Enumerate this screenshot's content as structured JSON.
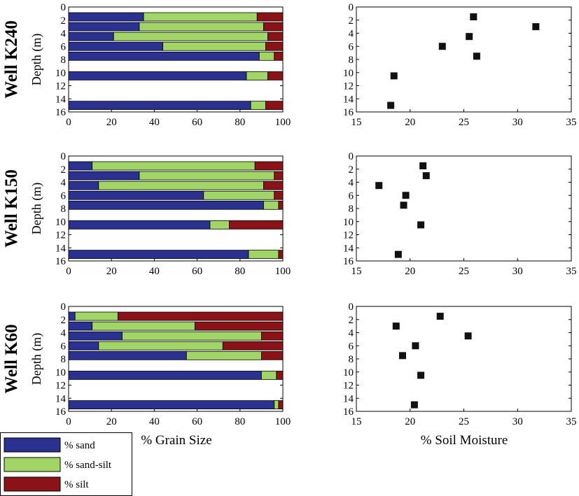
{
  "colors": {
    "sand": "#2b3191",
    "sand_silt": "#a1d667",
    "silt": "#8b1318",
    "marker": "#111111",
    "axis": "#000000"
  },
  "xlabels": {
    "grain": "% Grain Size",
    "moisture": "% Soil Moisture"
  },
  "ylabel": "Depth (m)",
  "legend": {
    "items": [
      {
        "key": "sand",
        "label": "% sand",
        "color_key": "sand"
      },
      {
        "key": "sand_silt",
        "label": "% sand-silt",
        "color_key": "sand_silt"
      },
      {
        "key": "silt",
        "label": "% silt",
        "color_key": "silt"
      }
    ]
  },
  "chart_data": [
    {
      "well": "Well K240",
      "grain": {
        "type": "bar",
        "orientation": "horizontal-stacked",
        "xlim": [
          0,
          100
        ],
        "ylim": [
          0,
          16
        ],
        "xticks": [
          "0",
          "20",
          "40",
          "60",
          "80",
          "100"
        ],
        "yticks": [
          "0",
          "2",
          "4",
          "6",
          "8",
          "10",
          "12",
          "14",
          "16"
        ],
        "rows": [
          {
            "depth": 1.5,
            "sand": 35,
            "sand_silt": 53,
            "silt": 12
          },
          {
            "depth": 3.0,
            "sand": 33,
            "sand_silt": 58,
            "silt": 9
          },
          {
            "depth": 4.5,
            "sand": 21,
            "sand_silt": 72,
            "silt": 7
          },
          {
            "depth": 6.0,
            "sand": 44,
            "sand_silt": 48,
            "silt": 8
          },
          {
            "depth": 7.5,
            "sand": 89,
            "sand_silt": 7,
            "silt": 4
          },
          {
            "depth": 10.5,
            "sand": 83,
            "sand_silt": 10,
            "silt": 7
          },
          {
            "depth": 15.0,
            "sand": 85,
            "sand_silt": 7,
            "silt": 8
          }
        ]
      },
      "moisture": {
        "type": "scatter",
        "xlim": [
          15,
          35
        ],
        "ylim": [
          0,
          16
        ],
        "xticks": [
          "15",
          "20",
          "25",
          "30",
          "35"
        ],
        "yticks": [
          "0",
          "2",
          "4",
          "6",
          "8",
          "10",
          "12",
          "14",
          "16"
        ],
        "points": [
          {
            "x": 25.9,
            "depth": 1.5
          },
          {
            "x": 31.7,
            "depth": 3.0
          },
          {
            "x": 25.5,
            "depth": 4.5
          },
          {
            "x": 23.0,
            "depth": 6.0
          },
          {
            "x": 26.2,
            "depth": 7.5
          },
          {
            "x": 18.5,
            "depth": 10.5
          },
          {
            "x": 18.2,
            "depth": 15.0
          }
        ]
      }
    },
    {
      "well": "Well K150",
      "grain": {
        "type": "bar",
        "orientation": "horizontal-stacked",
        "xlim": [
          0,
          100
        ],
        "ylim": [
          0,
          16
        ],
        "xticks": [
          "0",
          "20",
          "40",
          "60",
          "80",
          "100"
        ],
        "yticks": [
          "0",
          "2",
          "4",
          "6",
          "8",
          "10",
          "12",
          "14",
          "16"
        ],
        "rows": [
          {
            "depth": 1.5,
            "sand": 11,
            "sand_silt": 76,
            "silt": 13
          },
          {
            "depth": 3.0,
            "sand": 33,
            "sand_silt": 63,
            "silt": 4
          },
          {
            "depth": 4.5,
            "sand": 14,
            "sand_silt": 77,
            "silt": 9
          },
          {
            "depth": 6.0,
            "sand": 63,
            "sand_silt": 33,
            "silt": 4
          },
          {
            "depth": 7.5,
            "sand": 91,
            "sand_silt": 7,
            "silt": 2
          },
          {
            "depth": 10.5,
            "sand": 66,
            "sand_silt": 9,
            "silt": 25
          },
          {
            "depth": 15.0,
            "sand": 84,
            "sand_silt": 14,
            "silt": 2
          }
        ]
      },
      "moisture": {
        "type": "scatter",
        "xlim": [
          15,
          35
        ],
        "ylim": [
          0,
          16
        ],
        "xticks": [
          "15",
          "20",
          "25",
          "30",
          "35"
        ],
        "yticks": [
          "0",
          "2",
          "4",
          "6",
          "8",
          "10",
          "12",
          "14",
          "16"
        ],
        "points": [
          {
            "x": 21.2,
            "depth": 1.5
          },
          {
            "x": 21.5,
            "depth": 3.0
          },
          {
            "x": 17.1,
            "depth": 4.5
          },
          {
            "x": 19.6,
            "depth": 6.0
          },
          {
            "x": 19.4,
            "depth": 7.5
          },
          {
            "x": 21.0,
            "depth": 10.5
          },
          {
            "x": 18.9,
            "depth": 15.0
          }
        ]
      }
    },
    {
      "well": "Well K60",
      "grain": {
        "type": "bar",
        "orientation": "horizontal-stacked",
        "xlim": [
          0,
          100
        ],
        "ylim": [
          0,
          16
        ],
        "xticks": [
          "0",
          "20",
          "40",
          "60",
          "80",
          "100"
        ],
        "yticks": [
          "0",
          "2",
          "4",
          "6",
          "8",
          "10",
          "12",
          "14",
          "16"
        ],
        "rows": [
          {
            "depth": 1.5,
            "sand": 3,
            "sand_silt": 20,
            "silt": 77
          },
          {
            "depth": 3.0,
            "sand": 11,
            "sand_silt": 48,
            "silt": 41
          },
          {
            "depth": 4.5,
            "sand": 25,
            "sand_silt": 65,
            "silt": 10
          },
          {
            "depth": 6.0,
            "sand": 14,
            "sand_silt": 58,
            "silt": 28
          },
          {
            "depth": 7.5,
            "sand": 55,
            "sand_silt": 35,
            "silt": 10
          },
          {
            "depth": 10.5,
            "sand": 90,
            "sand_silt": 7,
            "silt": 3
          },
          {
            "depth": 15.0,
            "sand": 96,
            "sand_silt": 2,
            "silt": 2
          }
        ]
      },
      "moisture": {
        "type": "scatter",
        "xlim": [
          15,
          35
        ],
        "ylim": [
          0,
          16
        ],
        "xticks": [
          "15",
          "20",
          "25",
          "30",
          "35"
        ],
        "yticks": [
          "0",
          "2",
          "4",
          "6",
          "8",
          "10",
          "12",
          "14",
          "16"
        ],
        "points": [
          {
            "x": 22.8,
            "depth": 1.5
          },
          {
            "x": 18.7,
            "depth": 3.0
          },
          {
            "x": 25.4,
            "depth": 4.5
          },
          {
            "x": 20.5,
            "depth": 6.0
          },
          {
            "x": 19.3,
            "depth": 7.5
          },
          {
            "x": 21.0,
            "depth": 10.5
          },
          {
            "x": 20.4,
            "depth": 15.0
          }
        ]
      }
    }
  ]
}
